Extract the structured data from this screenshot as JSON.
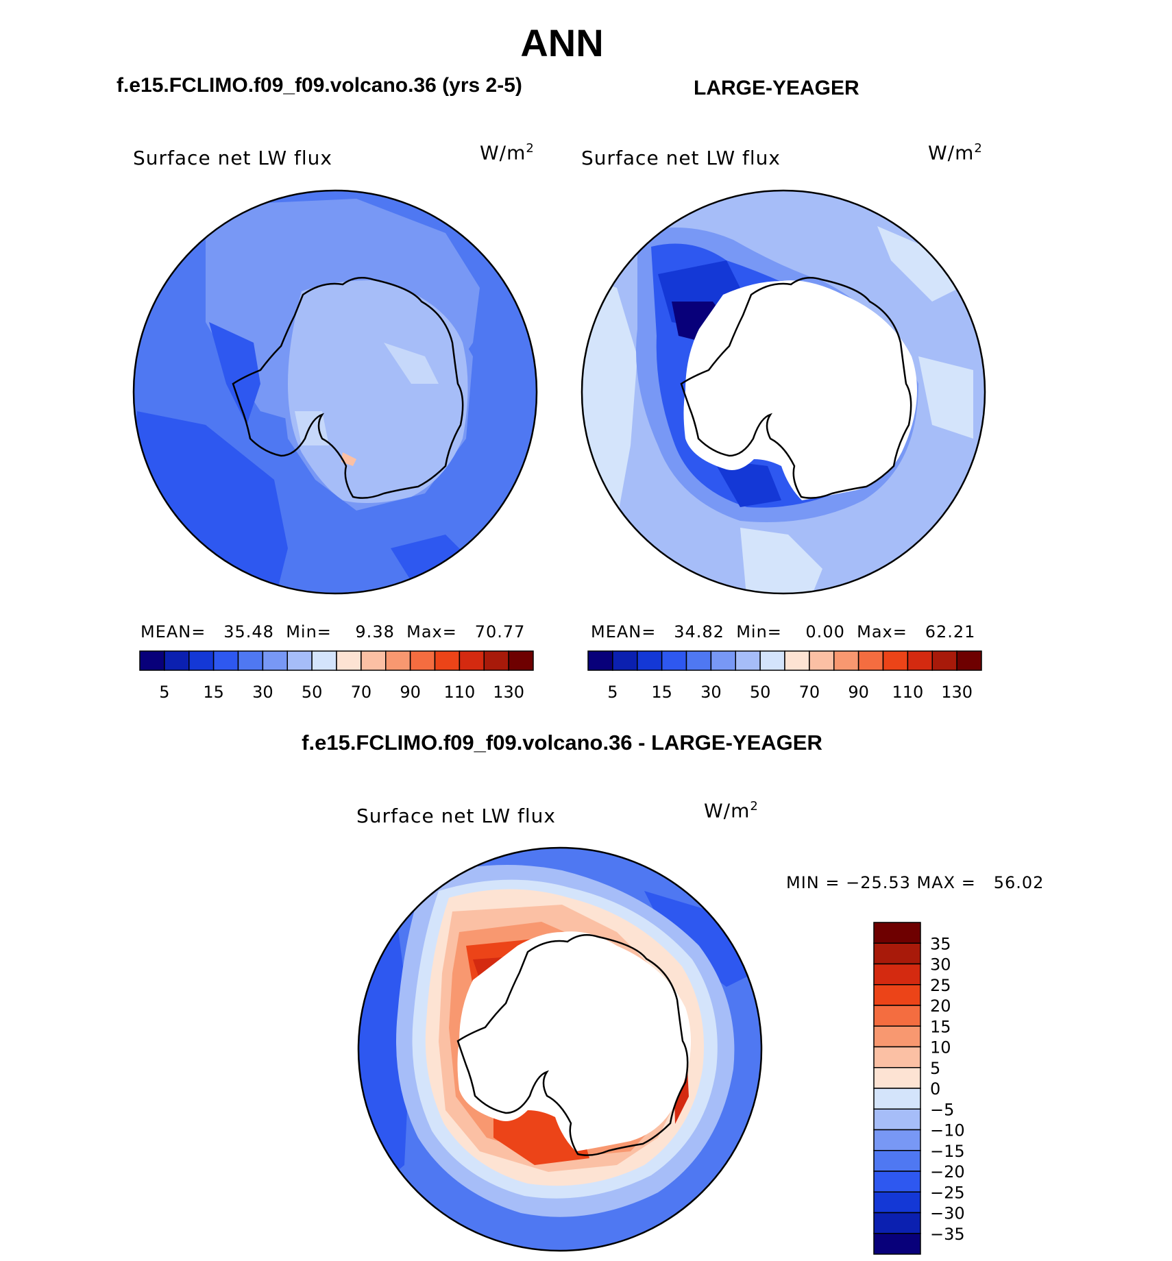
{
  "title": "ANN",
  "case_title": "f.e15.FCLIMO.f09_f09.volcano.36 (yrs 2-5)",
  "ref_title": "LARGE-YEAGER",
  "diff_title": "f.e15.FCLIMO.f09_f09.volcano.36 - LARGE-YEAGER",
  "colors": {
    "abs_palette": [
      "#08007a",
      "#0b20b0",
      "#1438d6",
      "#2e58f0",
      "#4f78f2",
      "#7898f5",
      "#a6bdf8",
      "#d4e4fb",
      "#fde3d3",
      "#fbc0a4",
      "#f89870",
      "#f46d40",
      "#ec4418",
      "#d42a10",
      "#a81a0a",
      "#6e0000"
    ],
    "diff_palette": [
      "#08007a",
      "#0b20b0",
      "#1438d6",
      "#2e58f0",
      "#4f78f2",
      "#7898f5",
      "#a6bdf8",
      "#d4e4fb",
      "#fde3d3",
      "#fbc0a4",
      "#f89870",
      "#f46d40",
      "#ec4418",
      "#d42a10",
      "#a81a0a",
      "#6e0000"
    ]
  },
  "panels": {
    "case": {
      "variable": "Surface net LW flux",
      "units": "W/m",
      "units_exp": "2",
      "stats": "MEAN=   35.48  Min=    9.38  Max=   70.77",
      "colorbar_labels": [
        "5",
        "15",
        "30",
        "50",
        "70",
        "90",
        "110",
        "130"
      ]
    },
    "ref": {
      "variable": "Surface net LW flux",
      "units": "W/m",
      "units_exp": "2",
      "stats": "MEAN=   34.82  Min=    0.00  Max=   62.21",
      "colorbar_labels": [
        "5",
        "15",
        "30",
        "50",
        "70",
        "90",
        "110",
        "130"
      ]
    },
    "diff": {
      "variable": "Surface net LW flux",
      "units": "W/m",
      "units_exp": "2",
      "stats": "MIN = −25.53 MAX =   56.02",
      "colorbar_labels": [
        "35",
        "30",
        "25",
        "20",
        "15",
        "10",
        "5",
        "0",
        "−5",
        "−10",
        "−15",
        "−20",
        "−25",
        "−30",
        "−35"
      ]
    }
  }
}
